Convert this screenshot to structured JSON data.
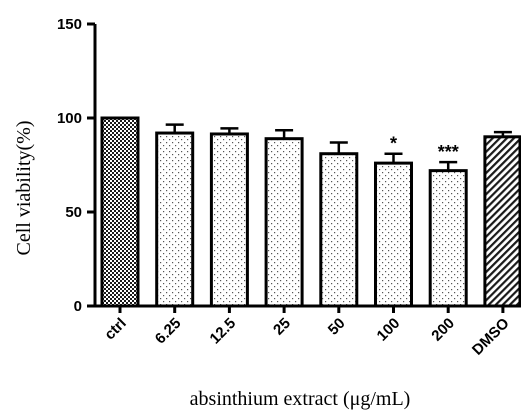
{
  "chart_data": {
    "type": "bar",
    "title": "",
    "xlabel": "absinthium extract (μg/mL)",
    "ylabel": "Cell viability(%)",
    "ylim": [
      0,
      150
    ],
    "yticks": [
      "0",
      "50",
      "100",
      "150"
    ],
    "categories": [
      "ctrl",
      "6.25",
      "12.5",
      "25",
      "50",
      "100",
      "200",
      "DMSO"
    ],
    "values": [
      100,
      92,
      91.5,
      89,
      81,
      76,
      72,
      90
    ],
    "errors": [
      0,
      4.5,
      3,
      4.5,
      6,
      5,
      4.5,
      2.5
    ],
    "annotations": [
      "",
      "",
      "",
      "",
      "",
      "*",
      "***",
      ""
    ],
    "patterns": [
      "checker",
      "dots",
      "dots",
      "dots",
      "dots",
      "dots",
      "dots",
      "diagonal"
    ],
    "grid": false,
    "legend": "none"
  }
}
